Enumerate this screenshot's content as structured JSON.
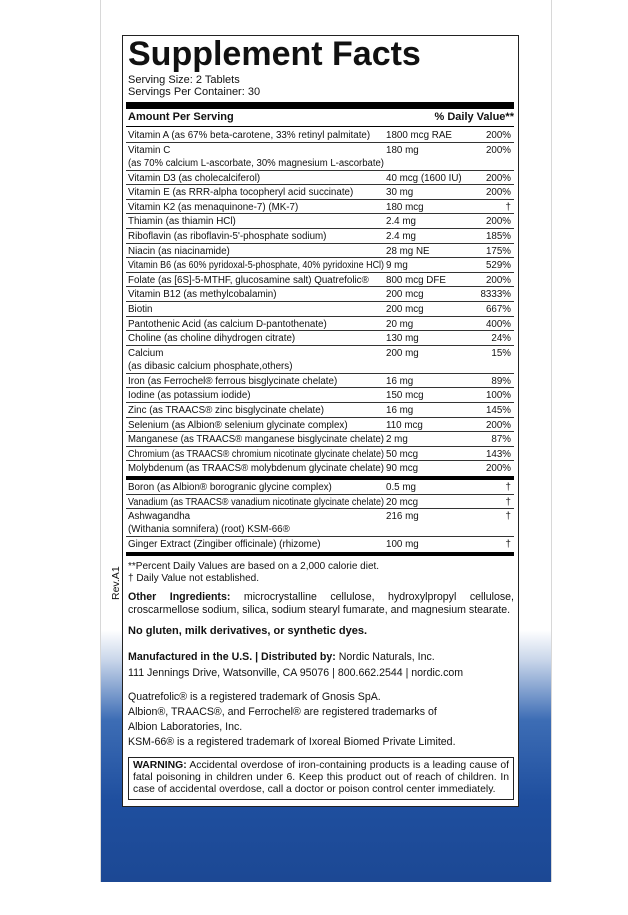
{
  "header": {
    "title": "Supplement Facts",
    "serving_size": "Serving Size: 2 Tablets",
    "servings_per_container": "Servings Per Container: 30"
  },
  "table": {
    "columns": [
      "Amount Per Serving",
      "% Daily Value**"
    ],
    "rows": [
      {
        "name": "Vitamin A (as 67% beta-carotene, 33% retinyl palmitate)",
        "amount": "1800 mcg RAE",
        "daily_value": "200%"
      },
      {
        "name": "Vitamin C",
        "detail": "(as 70% calcium L-ascorbate, 30% magnesium L-ascorbate)",
        "amount": "180 mg",
        "daily_value": "200%"
      },
      {
        "name": "Vitamin D3 (as cholecalciferol)",
        "amount": "40 mcg (1600 IU)",
        "daily_value": "200%"
      },
      {
        "name": "Vitamin E (as RRR-alpha tocopheryl acid succinate)",
        "amount": "30 mg",
        "daily_value": "200%"
      },
      {
        "name": "Vitamin K2 (as menaquinone-7) (MK-7)",
        "amount": "180 mcg",
        "daily_value": "†"
      },
      {
        "name": "Thiamin (as thiamin HCl)",
        "amount": "2.4 mg",
        "daily_value": "200%"
      },
      {
        "name": "Riboflavin (as riboflavin-5'-phosphate sodium)",
        "amount": "2.4 mg",
        "daily_value": "185%"
      },
      {
        "name": "Niacin (as niacinamide)",
        "amount": "28 mg NE",
        "daily_value": "175%"
      },
      {
        "name": "Vitamin B6 (as 60% pyridoxal-5-phosphate, 40% pyridoxine HCl)",
        "amount": "9 mg",
        "daily_value": "529%"
      },
      {
        "name": "Folate (as [6S]-5-MTHF, glucosamine salt) Quatrefolic®",
        "amount": "800 mcg DFE",
        "daily_value": "200%"
      },
      {
        "name": "Vitamin B12 (as methylcobalamin)",
        "amount": "200 mcg",
        "daily_value": "8333%"
      },
      {
        "name": "Biotin",
        "amount": "200 mcg",
        "daily_value": "667%"
      },
      {
        "name": "Pantothenic Acid (as calcium D-pantothenate)",
        "amount": "20 mg",
        "daily_value": "400%"
      },
      {
        "name": "Choline (as choline dihydrogen citrate)",
        "amount": "130 mg",
        "daily_value": "24%"
      },
      {
        "name": "Calcium",
        "detail": "(as dibasic calcium phosphate,others)",
        "amount": "200 mg",
        "daily_value": "15%"
      },
      {
        "name": "Iron (as Ferrochel® ferrous bisglycinate chelate)",
        "amount": "16 mg",
        "daily_value": "89%"
      },
      {
        "name": "Iodine (as potassium iodide)",
        "amount": "150 mcg",
        "daily_value": "100%"
      },
      {
        "name": "Zinc (as TRAACS® zinc bisglycinate chelate)",
        "amount": "16 mg",
        "daily_value": "145%"
      },
      {
        "name": "Selenium (as Albion® selenium glycinate complex)",
        "amount": "110 mcg",
        "daily_value": "200%"
      },
      {
        "name": "Manganese (as TRAACS® manganese bisglycinate chelate)",
        "amount": "2 mg",
        "daily_value": "87%"
      },
      {
        "name": "Chromium (as TRAACS® chromium nicotinate glycinate chelate)",
        "amount": "50 mcg",
        "daily_value": "143%"
      },
      {
        "name": "Molybdenum (as TRAACS® molybdenum glycinate chelate)",
        "amount": "90 mcg",
        "daily_value": "200%"
      }
    ],
    "other_rows": [
      {
        "name": "Boron (as Albion® borogranic glycine complex)",
        "amount": "0.5 mg",
        "daily_value": "†"
      },
      {
        "name": "Vanadium (as TRAACS® vanadium nicotinate glycinate chelate)",
        "amount": "20 mcg",
        "daily_value": "†"
      },
      {
        "name": "Ashwagandha",
        "detail": "(Withania somnifera) (root) KSM-66®",
        "amount": "216 mg",
        "daily_value": "†"
      },
      {
        "name": "Ginger Extract (Zingiber officinale) (rhizome)",
        "amount": "100 mg",
        "daily_value": "†"
      }
    ]
  },
  "footnotes": [
    "**Percent Daily Values are based on a 2,000 calorie diet.",
    "† Daily Value not established."
  ],
  "revision": "Rev.A1",
  "other_ingredients": {
    "label": "Other Ingredients:",
    "text": "microcrystalline cellulose, hydroxylpropyl cellulose, croscarmellose sodium, silica, sodium stearyl fumarate, and magnesium stearate."
  },
  "claim": "No gluten, milk derivatives, or synthetic dyes.",
  "manufacturer": {
    "label": "Manufactured in the U.S. | Distributed by:",
    "name": "Nordic Naturals, Inc.",
    "address": "111 Jennings Drive, Watsonville, CA 95076 | 800.662.2544 | nordic.com"
  },
  "trademarks": [
    "Quatrefolic® is a registered trademark of Gnosis SpA.",
    "Albion®, TRAACS®, and Ferrochel® are registered trademarks of",
    "Albion Laboratories, Inc.",
    "KSM-66® is a registered trademark of Ixoreal Biomed Private Limited."
  ],
  "warning": {
    "label": "WARNING:",
    "text": "Accidental overdose of iron-containing products is a leading cause of fatal poisoning in children under 6. Keep this product out of reach of children. In case of accidental overdose, call a doctor or poison control center immediately."
  }
}
